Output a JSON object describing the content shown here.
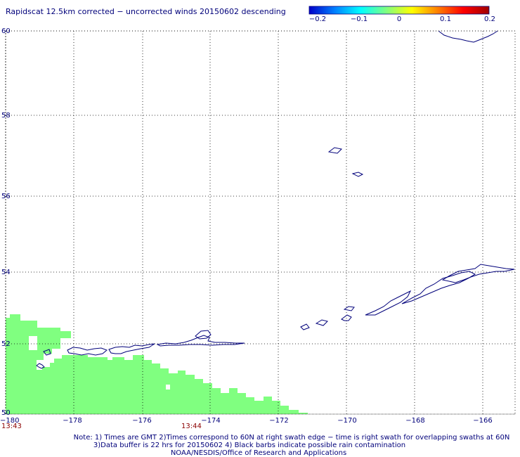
{
  "title": "Rapidscat 12.5km corrected − uncorrected winds 20150602 descending",
  "colorbar": {
    "ticks": [
      "−0.2",
      "−0.1",
      "0",
      "0.1",
      "0.2"
    ],
    "stops": [
      "#0000c8",
      "#0080ff",
      "#00ffff",
      "#80ff80",
      "#ffff00",
      "#ff8000",
      "#ff0000",
      "#a00000"
    ]
  },
  "map": {
    "lon_labels": [
      "−180",
      "−178",
      "−176",
      "−174",
      "−172",
      "−170",
      "−168",
      "−166"
    ],
    "lat_labels": [
      "60",
      "58",
      "56",
      "54",
      "52",
      "50"
    ],
    "lon_range": [
      -180,
      -165
    ],
    "lat_range": [
      50,
      60
    ],
    "grid": true,
    "coastline_color": "#00007a",
    "data_color": "#80ff80"
  },
  "times": [
    "13:43",
    "13:44"
  ],
  "notes": [
    "Note: 1) Times are GMT 2)Times correspond to 60N at right swath edge − time is right swath for overlapping swaths at 60N",
    "3)Data buffer is 22 hrs for 20150602 4) Black barbs indicate possible rain contamination",
    "NOAA/NESDIS/Office of Research and Applications"
  ]
}
